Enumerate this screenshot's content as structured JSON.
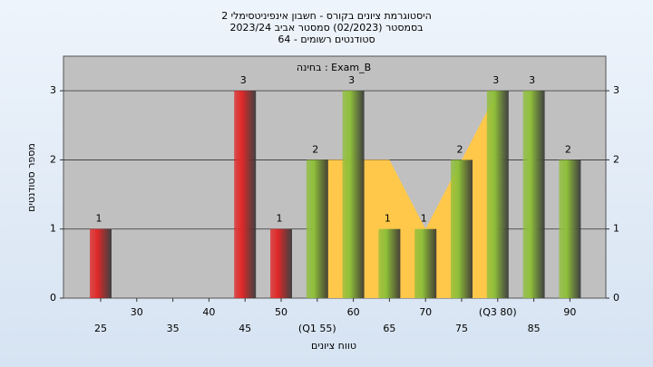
{
  "chart_data": {
    "type": "bar",
    "title": "היסטוגרמת ציונים בקורס - חשבון אינפיניטסימלי 2",
    "subtitle": "בסמסטר  (02/2023)  סמסטר אביב 2023/24",
    "subtitle2": "סטודנטים רשומים - 64",
    "annotation": "בחינה : Exam_B",
    "x_label": "טווח ציונים",
    "y_label": "מספר סטודנטים",
    "categories": [
      "25",
      "30",
      "35",
      "40",
      "45",
      "50",
      "(Q1 55)",
      "60",
      "65",
      "70",
      "75",
      "(Q3 80)",
      "85",
      "90"
    ],
    "values": [
      1,
      0,
      0,
      0,
      3,
      1,
      2,
      3,
      1,
      1,
      2,
      3,
      3,
      2
    ],
    "colors": [
      "#e02828",
      "#e02828",
      "#e02828",
      "#e02828",
      "#e02828",
      "#e02828",
      "#8fbf3a",
      "#8fbf3a",
      "#8fbf3a",
      "#8fbf3a",
      "#8fbf3a",
      "#8fbf3a",
      "#8fbf3a",
      "#8fbf3a"
    ],
    "area": {
      "color": "#ffc84a",
      "values": [
        null,
        null,
        null,
        null,
        null,
        null,
        2,
        2,
        2,
        1,
        2,
        3,
        null,
        null
      ]
    },
    "ylim": [
      0,
      3.5
    ],
    "yticks": [
      0,
      1,
      2,
      3
    ],
    "grid": true
  }
}
